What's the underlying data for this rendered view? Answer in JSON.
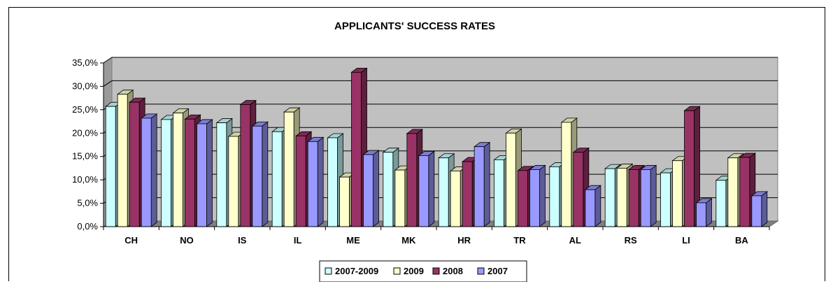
{
  "chart_data": {
    "type": "bar",
    "title": "APPLICANTS' SUCCESS RATES",
    "categories": [
      "CH",
      "NO",
      "IS",
      "IL",
      "ME",
      "MK",
      "HR",
      "TR",
      "AL",
      "RS",
      "LI",
      "BA"
    ],
    "series": [
      {
        "name": "2007-2009",
        "color": "#ccffff",
        "values": [
          25.7,
          22.9,
          22.2,
          20.3,
          19.0,
          15.9,
          14.7,
          14.3,
          12.8,
          12.4,
          11.5,
          9.9
        ]
      },
      {
        "name": "2009",
        "color": "#ffffcc",
        "values": [
          28.3,
          24.3,
          19.3,
          24.5,
          10.6,
          12.1,
          11.9,
          20.0,
          22.3,
          12.5,
          14.1,
          14.7
        ]
      },
      {
        "name": "2008",
        "color": "#993366",
        "values": [
          26.6,
          23.0,
          26.1,
          19.4,
          33.0,
          19.9,
          13.9,
          12.0,
          15.9,
          12.2,
          24.8,
          14.8
        ]
      },
      {
        "name": "2007",
        "color": "#9999ff",
        "values": [
          23.2,
          22.0,
          21.5,
          18.2,
          15.4,
          15.2,
          17.1,
          12.2,
          7.9,
          12.2,
          5.1,
          6.6
        ]
      }
    ],
    "y_ticks": [
      "0,0%",
      "5,0%",
      "10,0%",
      "15,0%",
      "20,0%",
      "25,0%",
      "30,0%",
      "35,0%"
    ],
    "ylim": [
      0,
      35
    ],
    "grid": true,
    "legend": "bottom",
    "plot_background": "#c0c0c0"
  }
}
